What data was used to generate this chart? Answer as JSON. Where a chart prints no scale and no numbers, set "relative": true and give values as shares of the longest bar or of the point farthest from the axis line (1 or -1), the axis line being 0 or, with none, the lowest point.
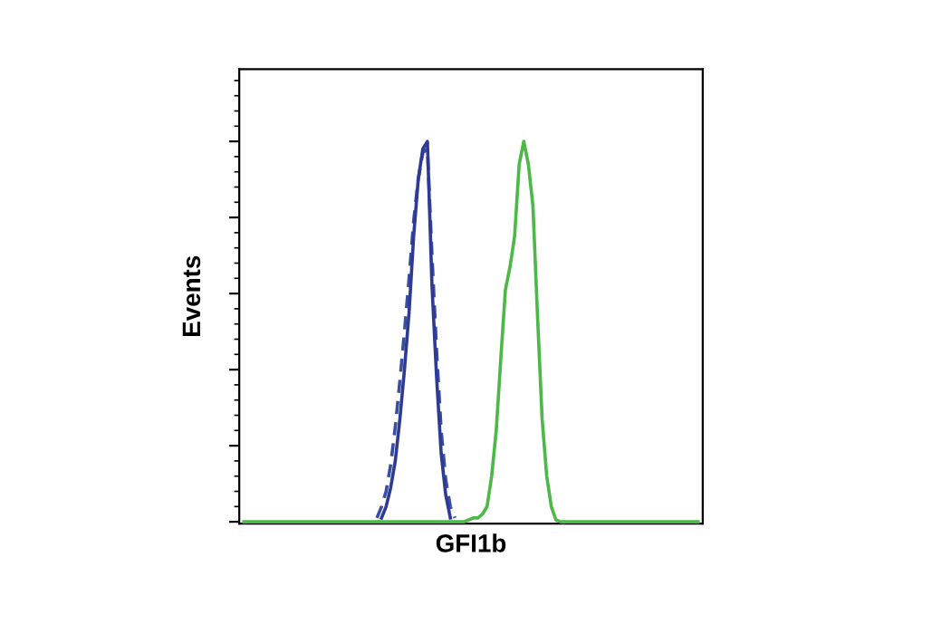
{
  "chart_data": {
    "type": "line",
    "relative": true,
    "xlabel": "GFI1b",
    "ylabel": "Events",
    "categories": [
      null,
      null,
      null,
      null,
      null,
      null,
      null,
      null,
      null,
      null,
      null,
      null,
      null,
      null,
      null,
      null,
      null,
      null,
      null,
      null,
      null,
      null,
      null,
      null,
      null,
      null,
      null,
      null,
      null,
      null,
      null,
      null,
      null,
      null,
      null,
      null,
      null,
      null,
      null,
      null,
      null,
      null,
      null,
      null,
      null,
      null,
      null,
      null,
      null,
      null,
      null,
      null,
      null,
      null,
      null,
      null,
      null,
      null,
      null,
      null,
      null,
      null,
      null,
      null,
      null,
      null,
      null,
      null,
      null,
      null,
      null,
      null,
      null,
      null,
      null,
      null,
      null,
      null,
      null,
      null,
      null,
      null,
      null,
      null,
      null,
      null,
      null,
      null,
      null,
      null,
      null,
      null,
      null,
      null,
      null,
      null,
      null,
      null,
      null,
      null
    ],
    "series": [
      {
        "color": "#4cb848",
        "line_style": "solid",
        "values": [
          0,
          0,
          0,
          0,
          0,
          0,
          0,
          0,
          0,
          0,
          0,
          0,
          0,
          0,
          0,
          0,
          0,
          0,
          0,
          0,
          0,
          0,
          0,
          0,
          0,
          0,
          0,
          0,
          0,
          0,
          0,
          0,
          0,
          0,
          0,
          0,
          0,
          0,
          0,
          0,
          0,
          0,
          0,
          0,
          0,
          0,
          0,
          0,
          0,
          0.005,
          0.01,
          0.01,
          0.02,
          0.04,
          0.12,
          0.24,
          0.43,
          0.61,
          0.67,
          0.75,
          0.94,
          1.0,
          0.94,
          0.83,
          0.54,
          0.27,
          0.12,
          0.04,
          0.005,
          0,
          0,
          0,
          0,
          0,
          0,
          0,
          0,
          0,
          0,
          0,
          0,
          0,
          0,
          0,
          0,
          0,
          0,
          0,
          0,
          0,
          0,
          0,
          0,
          0,
          0,
          0,
          0,
          0,
          0,
          0
        ]
      },
      {
        "color": "#3a4fa0",
        "line_style": "dashed",
        "values": [
          null,
          null,
          null,
          null,
          null,
          null,
          null,
          null,
          null,
          null,
          null,
          null,
          null,
          null,
          null,
          null,
          null,
          null,
          null,
          null,
          null,
          null,
          null,
          null,
          null,
          null,
          null,
          null,
          null,
          0.01,
          0.04,
          0.08,
          0.15,
          0.25,
          0.37,
          0.5,
          0.64,
          0.79,
          0.9,
          0.97,
          0.98,
          0.7,
          0.45,
          0.24,
          0.11,
          0.04,
          0.01,
          null,
          null,
          null,
          null,
          null,
          null,
          null,
          null,
          null,
          null,
          null,
          null,
          null,
          null,
          null,
          null,
          null,
          null,
          null,
          null,
          null,
          null,
          null,
          null,
          null,
          null,
          null,
          null,
          null,
          null,
          null,
          null,
          null,
          null,
          null,
          null,
          null,
          null,
          null,
          null,
          null,
          null,
          null,
          null,
          null,
          null,
          null,
          null,
          null,
          null,
          null,
          null,
          null
        ]
      },
      {
        "color": "#2e3a94",
        "line_style": "solid",
        "values": [
          null,
          null,
          null,
          null,
          null,
          null,
          null,
          null,
          null,
          null,
          null,
          null,
          null,
          null,
          null,
          null,
          null,
          null,
          null,
          null,
          null,
          null,
          null,
          null,
          null,
          null,
          null,
          null,
          null,
          null,
          0.01,
          0.04,
          0.09,
          0.16,
          0.27,
          0.4,
          0.55,
          0.75,
          0.9,
          0.98,
          1.0,
          0.62,
          0.38,
          0.18,
          0.07,
          0.01,
          null,
          null,
          null,
          null,
          null,
          null,
          null,
          null,
          null,
          null,
          null,
          null,
          null,
          null,
          null,
          null,
          null,
          null,
          null,
          null,
          null,
          null,
          null,
          null,
          null,
          null,
          null,
          null,
          null,
          null,
          null,
          null,
          null,
          null,
          null,
          null,
          null,
          null,
          null,
          null,
          null,
          null,
          null,
          null,
          null,
          null,
          null,
          null,
          null,
          null,
          null,
          null,
          null,
          null
        ]
      }
    ]
  }
}
